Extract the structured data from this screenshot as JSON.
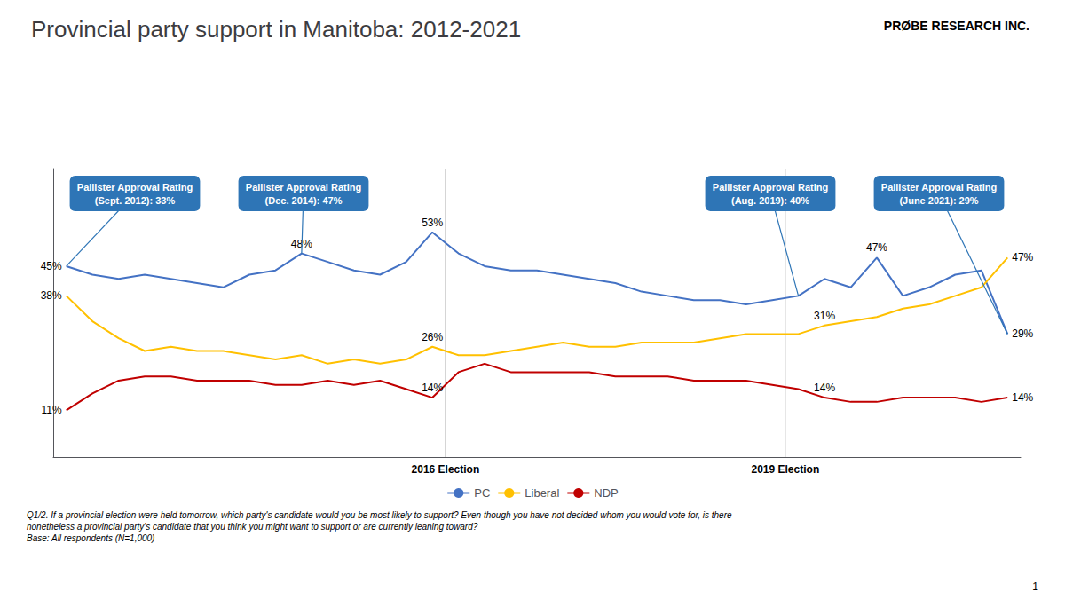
{
  "chart_data": {
    "type": "line",
    "title": "Provincial party support in Manitoba: 2012-2021",
    "categories": [
      null,
      null,
      null,
      null,
      null,
      null,
      null,
      null,
      null,
      null,
      null,
      null,
      null,
      null,
      null,
      null,
      null,
      null,
      null,
      null,
      null,
      null,
      null,
      null,
      null,
      null,
      null,
      null,
      null,
      null,
      null,
      null,
      null,
      null,
      null,
      null,
      null
    ],
    "series": [
      {
        "name": "PC",
        "color": "#4472C4",
        "values": [
          45,
          43,
          42,
          43,
          42,
          41,
          40,
          43,
          44,
          48,
          46,
          44,
          43,
          46,
          53,
          48,
          45,
          44,
          44,
          43,
          42,
          41,
          39,
          38,
          37,
          37,
          36,
          37,
          38,
          42,
          40,
          47,
          38,
          40,
          43,
          44,
          29
        ],
        "value_labels": [
          "45%",
          null,
          null,
          null,
          null,
          null,
          null,
          null,
          null,
          "48%",
          null,
          null,
          null,
          null,
          "53%",
          null,
          null,
          null,
          null,
          null,
          null,
          null,
          null,
          null,
          null,
          null,
          null,
          null,
          null,
          null,
          null,
          "47%",
          null,
          null,
          null,
          null,
          "29%"
        ]
      },
      {
        "name": "Liberal",
        "color": "#FFC000",
        "values": [
          38,
          32,
          28,
          25,
          26,
          25,
          25,
          24,
          23,
          24,
          22,
          23,
          22,
          23,
          26,
          24,
          24,
          25,
          26,
          27,
          26,
          26,
          27,
          27,
          27,
          28,
          29,
          29,
          29,
          31,
          32,
          33,
          35,
          36,
          38,
          40,
          47
        ],
        "value_labels": [
          "38%",
          null,
          null,
          null,
          null,
          null,
          null,
          null,
          null,
          null,
          null,
          null,
          null,
          null,
          "26%",
          null,
          null,
          null,
          null,
          null,
          null,
          null,
          null,
          null,
          null,
          null,
          null,
          null,
          null,
          "31%",
          null,
          null,
          null,
          null,
          null,
          null,
          "47%"
        ]
      },
      {
        "name": "NDP",
        "color": "#C00000",
        "values": [
          11,
          15,
          18,
          19,
          19,
          18,
          18,
          18,
          17,
          17,
          18,
          17,
          18,
          16,
          14,
          20,
          22,
          20,
          20,
          20,
          20,
          19,
          19,
          19,
          18,
          18,
          18,
          17,
          16,
          14,
          13,
          13,
          14,
          14,
          14,
          13,
          14
        ],
        "value_labels": [
          "11%",
          null,
          null,
          null,
          null,
          null,
          null,
          null,
          null,
          null,
          null,
          null,
          null,
          null,
          "14%",
          null,
          null,
          null,
          null,
          null,
          null,
          null,
          null,
          null,
          null,
          null,
          null,
          null,
          null,
          "14%",
          null,
          null,
          null,
          null,
          null,
          null,
          "14%"
        ]
      }
    ],
    "ylim": [
      0,
      68
    ],
    "tick_labels": false,
    "grid": false,
    "legend": "bottom",
    "annotations": [
      {
        "text": "Pallister Approval Rating\n(Sept. 2012): 33%",
        "series": "PC",
        "index": 0,
        "color": "#2E75B6"
      },
      {
        "text": "Pallister Approval Rating\n(Dec. 2014): 47%",
        "series": "PC",
        "index": 9,
        "color": "#2E75B6"
      },
      {
        "text": "Pallister Approval Rating\n(Aug. 2019): 40%",
        "series": "PC",
        "index": 28,
        "color": "#2E75B6"
      },
      {
        "text": "Pallister Approval Rating\n(June 2021): 29%",
        "series": "PC",
        "index": 36,
        "color": "#2E75B6"
      }
    ],
    "elections": [
      {
        "label": "2016 Election",
        "x": 14.5
      },
      {
        "label": "2019 Election",
        "x": 27.5
      }
    ],
    "logo": "PRØBE RESEARCH INC.",
    "footnote": [
      "Q1/2. If a provincial election were held tomorrow, which party's candidate would you be most likely to support? Even though you have not decided whom you would vote for, is there",
      "nonetheless a provincial party's candidate that you think you might want to support or are currently leaning toward?",
      "Base: All respondents (N=1,000)"
    ],
    "page_number": "1"
  }
}
